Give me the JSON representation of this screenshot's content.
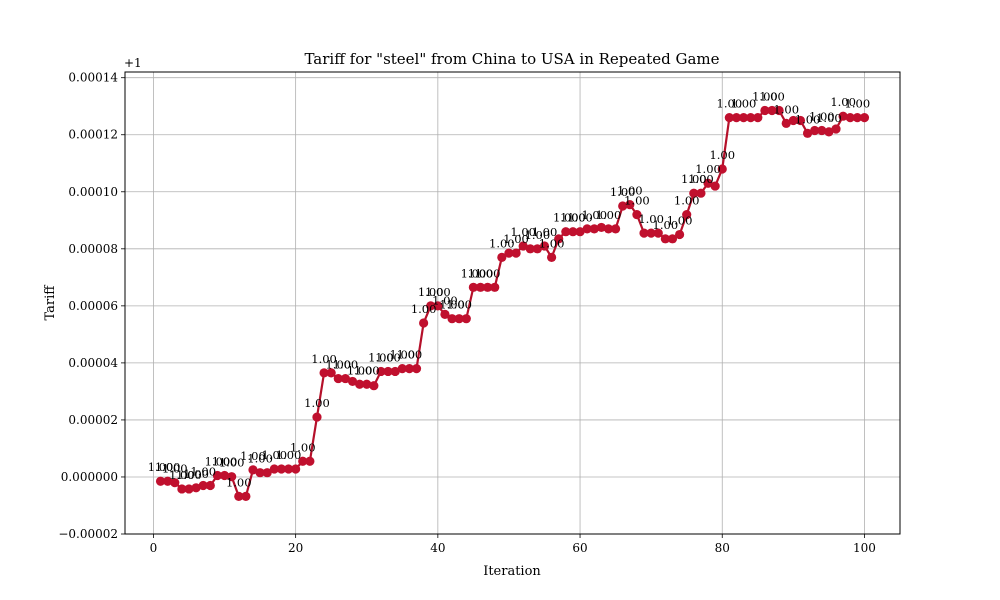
{
  "chart_data": {
    "type": "line",
    "title": "Tariff for \"steel\" from China to USA in Repeated Game",
    "xlabel": "Iteration",
    "ylabel": "Tariff",
    "offset_label": "+1",
    "xlim": [
      -4,
      105
    ],
    "ylim": [
      -2e-05,
      0.000142
    ],
    "x_ticks": [
      0,
      20,
      40,
      60,
      80,
      100
    ],
    "x_tick_labels": [
      "0",
      "20",
      "40",
      "60",
      "80",
      "100"
    ],
    "y_ticks": [
      -2e-05,
      0,
      2e-05,
      4e-05,
      6e-05,
      8e-05,
      0.0001,
      0.00012,
      0.00014
    ],
    "y_tick_labels": [
      "−0.00002",
      "0.000000",
      "0.00002",
      "0.00004",
      "0.00006",
      "0.00008",
      "0.00010",
      "0.00012",
      "0.00014"
    ],
    "grid": true,
    "line_color": "#b5102a",
    "marker_color": "#c0102e",
    "x": [
      1,
      2,
      3,
      4,
      5,
      6,
      7,
      8,
      9,
      10,
      11,
      12,
      13,
      14,
      15,
      16,
      17,
      18,
      19,
      20,
      21,
      22,
      23,
      24,
      25,
      26,
      27,
      28,
      29,
      30,
      31,
      32,
      33,
      34,
      35,
      36,
      37,
      38,
      39,
      40,
      41,
      42,
      43,
      44,
      45,
      46,
      47,
      48,
      49,
      50,
      51,
      52,
      53,
      54,
      55,
      56,
      57,
      58,
      59,
      60,
      61,
      62,
      63,
      64,
      65,
      66,
      67,
      68,
      69,
      70,
      71,
      72,
      73,
      74,
      75,
      76,
      77,
      78,
      79,
      80,
      81,
      82,
      83,
      84,
      85,
      86,
      87,
      88,
      89,
      90,
      91,
      92,
      93,
      94,
      95,
      96,
      97,
      98,
      99,
      100
    ],
    "values": [
      -1.5e-06,
      -1.5e-06,
      -2e-06,
      -4.2e-06,
      -4.2e-06,
      -3.8e-06,
      -3e-06,
      -3e-06,
      5e-07,
      5e-07,
      1e-07,
      -6.8e-06,
      -6.8e-06,
      2.5e-06,
      1.5e-06,
      1.5e-06,
      2.8e-06,
      2.8e-06,
      2.8e-06,
      2.8e-06,
      5.5e-06,
      5.5e-06,
      2.1e-05,
      3.65e-05,
      3.65e-05,
      3.45e-05,
      3.45e-05,
      3.35e-05,
      3.25e-05,
      3.25e-05,
      3.2e-05,
      3.7e-05,
      3.7e-05,
      3.7e-05,
      3.8e-05,
      3.8e-05,
      3.8e-05,
      5.4e-05,
      6e-05,
      6e-05,
      5.7e-05,
      5.55e-05,
      5.55e-05,
      5.55e-05,
      6.65e-05,
      6.65e-05,
      6.65e-05,
      6.65e-05,
      7.7e-05,
      7.85e-05,
      7.85e-05,
      8.1e-05,
      8e-05,
      8e-05,
      8.1e-05,
      7.7e-05,
      8.35e-05,
      8.6e-05,
      8.6e-05,
      8.6e-05,
      8.7e-05,
      8.7e-05,
      8.75e-05,
      8.7e-05,
      8.7e-05,
      9.5e-05,
      9.55e-05,
      9.2e-05,
      8.55e-05,
      8.55e-05,
      8.55e-05,
      8.35e-05,
      8.35e-05,
      8.5e-05,
      9.2e-05,
      9.95e-05,
      9.95e-05,
      0.000103,
      0.000102,
      0.000108,
      0.000126,
      0.000126,
      0.000126,
      0.000126,
      0.000126,
      0.0001285,
      0.0001285,
      0.0001285,
      0.000124,
      0.000125,
      0.000125,
      0.0001205,
      0.0001215,
      0.0001215,
      0.000121,
      0.000122,
      0.0001265,
      0.000126,
      0.000126,
      0.000126
    ],
    "data_labels": [
      {
        "x": 1,
        "y": -1.5e-06,
        "text": "1.00"
      },
      {
        "x": 2,
        "y": -1.5e-06,
        "text": "1.00"
      },
      {
        "x": 3,
        "y": -2e-06,
        "text": "1.00"
      },
      {
        "x": 4,
        "y": -4.2e-06,
        "text": "1.00"
      },
      {
        "x": 5,
        "y": -4.2e-06,
        "text": "1.00"
      },
      {
        "x": 6,
        "y": -3.8e-06,
        "text": "1.00"
      },
      {
        "x": 7,
        "y": -3e-06,
        "text": "1.00"
      },
      {
        "x": 9,
        "y": 5e-07,
        "text": "1.00"
      },
      {
        "x": 10,
        "y": 5e-07,
        "text": "1.00"
      },
      {
        "x": 11,
        "y": 1e-07,
        "text": "1.00"
      },
      {
        "x": 12,
        "y": -6.8e-06,
        "text": "1.00"
      },
      {
        "x": 14,
        "y": 2.5e-06,
        "text": "1.00"
      },
      {
        "x": 15,
        "y": 1.5e-06,
        "text": "1.00"
      },
      {
        "x": 17,
        "y": 2.8e-06,
        "text": "1.00"
      },
      {
        "x": 19,
        "y": 2.8e-06,
        "text": "1.00"
      },
      {
        "x": 21,
        "y": 5.5e-06,
        "text": "1.00"
      },
      {
        "x": 23,
        "y": 2.1e-05,
        "text": "1.00"
      },
      {
        "x": 24,
        "y": 3.65e-05,
        "text": "1.00"
      },
      {
        "x": 26,
        "y": 3.45e-05,
        "text": "1.00"
      },
      {
        "x": 27,
        "y": 3.45e-05,
        "text": "1.00"
      },
      {
        "x": 29,
        "y": 3.25e-05,
        "text": "1.00"
      },
      {
        "x": 30,
        "y": 3.25e-05,
        "text": "1.00"
      },
      {
        "x": 32,
        "y": 3.7e-05,
        "text": "1.00"
      },
      {
        "x": 33,
        "y": 3.7e-05,
        "text": "1.00"
      },
      {
        "x": 35,
        "y": 3.8e-05,
        "text": "1.00"
      },
      {
        "x": 36,
        "y": 3.8e-05,
        "text": "1.00"
      },
      {
        "x": 38,
        "y": 5.4e-05,
        "text": "1.00"
      },
      {
        "x": 39,
        "y": 6e-05,
        "text": "1.00"
      },
      {
        "x": 40,
        "y": 6e-05,
        "text": "1.00"
      },
      {
        "x": 41,
        "y": 5.7e-05,
        "text": "1.00"
      },
      {
        "x": 42,
        "y": 5.55e-05,
        "text": "1.00"
      },
      {
        "x": 43,
        "y": 5.55e-05,
        "text": "1.00"
      },
      {
        "x": 45,
        "y": 6.65e-05,
        "text": "1.00"
      },
      {
        "x": 46,
        "y": 6.65e-05,
        "text": "1.00"
      },
      {
        "x": 47,
        "y": 6.65e-05,
        "text": "1.00"
      },
      {
        "x": 49,
        "y": 7.7e-05,
        "text": "1.00"
      },
      {
        "x": 51,
        "y": 7.85e-05,
        "text": "1.00"
      },
      {
        "x": 52,
        "y": 8.1e-05,
        "text": "1.00"
      },
      {
        "x": 54,
        "y": 8e-05,
        "text": "1.00"
      },
      {
        "x": 55,
        "y": 8.1e-05,
        "text": "1.00"
      },
      {
        "x": 56,
        "y": 7.7e-05,
        "text": "1.00"
      },
      {
        "x": 58,
        "y": 8.6e-05,
        "text": "1.00"
      },
      {
        "x": 59,
        "y": 8.6e-05,
        "text": "1.00"
      },
      {
        "x": 60,
        "y": 8.6e-05,
        "text": "1.00"
      },
      {
        "x": 62,
        "y": 8.7e-05,
        "text": "1.00"
      },
      {
        "x": 64,
        "y": 8.7e-05,
        "text": "1.00"
      },
      {
        "x": 66,
        "y": 9.5e-05,
        "text": "1.00"
      },
      {
        "x": 67,
        "y": 9.55e-05,
        "text": "1.00"
      },
      {
        "x": 68,
        "y": 9.2e-05,
        "text": "1.00"
      },
      {
        "x": 70,
        "y": 8.55e-05,
        "text": "1.00"
      },
      {
        "x": 72,
        "y": 8.35e-05,
        "text": "1.00"
      },
      {
        "x": 74,
        "y": 8.5e-05,
        "text": "1.00"
      },
      {
        "x": 75,
        "y": 9.2e-05,
        "text": "1.00"
      },
      {
        "x": 76,
        "y": 9.95e-05,
        "text": "1.00"
      },
      {
        "x": 77,
        "y": 9.95e-05,
        "text": "1.00"
      },
      {
        "x": 78,
        "y": 0.000103,
        "text": "1.00"
      },
      {
        "x": 80,
        "y": 0.000108,
        "text": "1.00"
      },
      {
        "x": 81,
        "y": 0.000126,
        "text": "1.00"
      },
      {
        "x": 83,
        "y": 0.000126,
        "text": "1.00"
      },
      {
        "x": 86,
        "y": 0.0001285,
        "text": "1.00"
      },
      {
        "x": 87,
        "y": 0.0001285,
        "text": "1.00"
      },
      {
        "x": 89,
        "y": 0.000124,
        "text": "1.00"
      },
      {
        "x": 92,
        "y": 0.0001205,
        "text": "1.00"
      },
      {
        "x": 94,
        "y": 0.0001215,
        "text": "1.00"
      },
      {
        "x": 95,
        "y": 0.000121,
        "text": "1.00"
      },
      {
        "x": 97,
        "y": 0.0001265,
        "text": "1.00"
      },
      {
        "x": 99,
        "y": 0.000126,
        "text": "1.00"
      }
    ]
  }
}
